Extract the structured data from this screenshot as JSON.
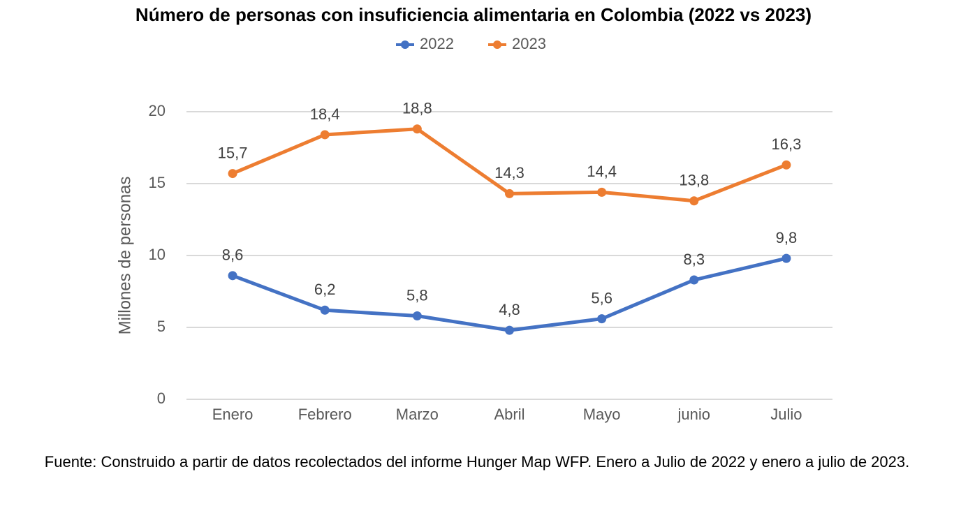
{
  "chart_data": {
    "type": "line",
    "title": "Número de personas con insuficiencia alimentaria en Colombia (2022 vs 2023)",
    "y_label": "Millones de personas",
    "categories": [
      "Enero",
      "Febrero",
      "Marzo",
      "Abril",
      "Mayo",
      "junio",
      "Julio"
    ],
    "series": [
      {
        "name": "2022",
        "color": "#4472c4",
        "values": [
          8.6,
          6.2,
          5.8,
          4.8,
          5.6,
          8.3,
          9.8
        ],
        "value_labels": [
          "8,6",
          "6,2",
          "5,8",
          "4,8",
          "5,6",
          "8,3",
          "9,8"
        ]
      },
      {
        "name": "2023",
        "color": "#ed7d31",
        "values": [
          15.7,
          18.4,
          18.8,
          14.3,
          14.4,
          13.8,
          16.3
        ],
        "value_labels": [
          "15,7",
          "18,4",
          "18,8",
          "14,3",
          "14,4",
          "13,8",
          "16,3"
        ]
      }
    ],
    "ylim": [
      0,
      20
    ],
    "yticks": [
      0,
      5,
      10,
      15,
      20
    ],
    "grid": true,
    "legend": "top",
    "note": "Fuente: Construido a partir de datos recolectados del informe Hunger Map WFP. Enero a Julio de 2022 y enero a julio de 2023."
  }
}
